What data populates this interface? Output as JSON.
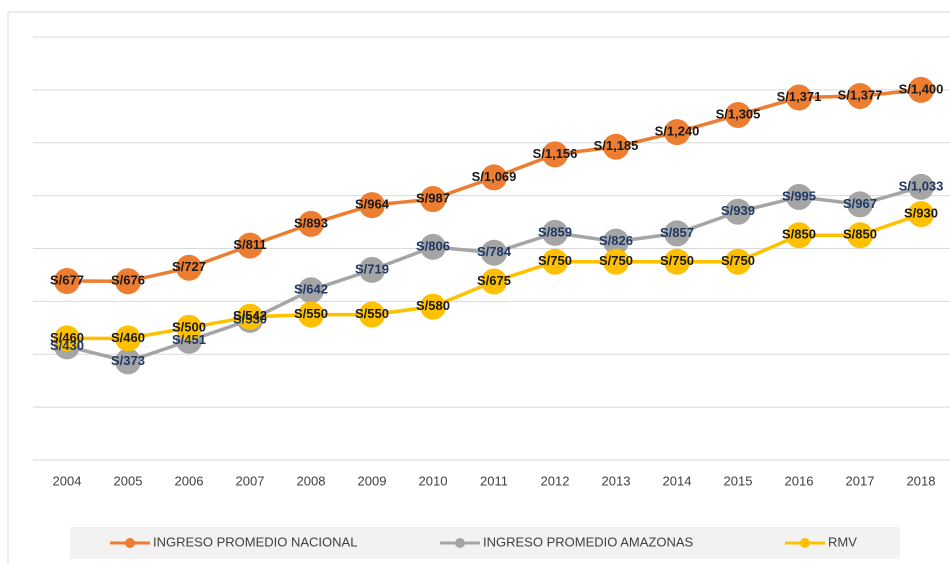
{
  "chart_data": {
    "type": "line",
    "categories": [
      "2004",
      "2005",
      "2006",
      "2007",
      "2008",
      "2009",
      "2010",
      "2011",
      "2012",
      "2013",
      "2014",
      "2015",
      "2016",
      "2017",
      "2018"
    ],
    "ylim": [
      0,
      1600
    ],
    "yticks": [
      0,
      200,
      400,
      600,
      800,
      1000,
      1200,
      1400,
      1600
    ],
    "grid": true,
    "legend": "bottom",
    "series": [
      {
        "name": "INGRESO PROMEDIO NACIONAL",
        "color": "#ED7D31",
        "label_color": "#1a1a1a",
        "values": [
          677,
          676,
          727,
          811,
          893,
          964,
          987,
          1069,
          1156,
          1185,
          1240,
          1305,
          1371,
          1377,
          1400
        ],
        "value_labels": [
          "S/677",
          "S/676",
          "S/727",
          "S/811",
          "S/893",
          "S/964",
          "S/987",
          "S/1,069",
          "S/1,156",
          "S/1,185",
          "S/1,240",
          "S/1,305",
          "S/1,371",
          "S/1,377",
          "S/1,400"
        ]
      },
      {
        "name": "INGRESO PROMEDIO AMAZONAS",
        "color": "#A5A5A5",
        "label_color": "#1F3864",
        "values": [
          430,
          373,
          451,
          530,
          642,
          719,
          806,
          784,
          859,
          826,
          857,
          939,
          995,
          967,
          1033
        ],
        "value_labels": [
          "S/430",
          "S/373",
          "S/451",
          "S/530",
          "S/642",
          "S/719",
          "S/806",
          "S/784",
          "S/859",
          "S/826",
          "S/857",
          "S/939",
          "S/995",
          "S/967",
          "S/1,033"
        ]
      },
      {
        "name": "RMV",
        "color": "#FFC000",
        "label_color": "#1a1a1a",
        "values": [
          460,
          460,
          500,
          542,
          550,
          550,
          580,
          675,
          750,
          750,
          750,
          750,
          850,
          850,
          930
        ],
        "value_labels": [
          "S/460",
          "S/460",
          "S/500",
          "S/542",
          "S/550",
          "S/550",
          "S/580",
          "S/675",
          "S/750",
          "S/750",
          "S/750",
          "S/750",
          "S/850",
          "S/850",
          "S/930"
        ]
      }
    ]
  }
}
